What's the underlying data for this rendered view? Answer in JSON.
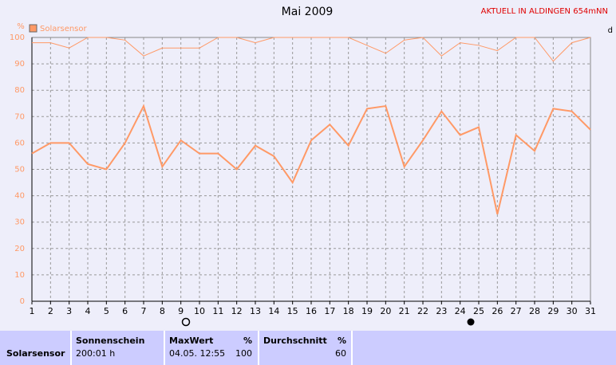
{
  "chart_data": {
    "type": "line",
    "title": "Mai 2009",
    "subtitle": "AKTUELL IN ALDINGEN 654mNN",
    "y_label": "%",
    "right_label": "d",
    "x": [
      1,
      2,
      3,
      4,
      5,
      6,
      7,
      8,
      9,
      10,
      11,
      12,
      13,
      14,
      15,
      16,
      17,
      18,
      19,
      20,
      21,
      22,
      23,
      24,
      25,
      26,
      27,
      28,
      29,
      30,
      31
    ],
    "series": [
      {
        "name": "Solarsensor",
        "color": "#ff9966",
        "values": [
          56,
          60,
          60,
          52,
          50,
          60,
          74,
          51,
          61,
          56,
          56,
          50,
          59,
          55,
          45,
          61,
          67,
          59,
          73,
          74,
          51,
          61,
          72,
          63,
          66,
          33,
          63,
          57,
          73,
          72,
          65
        ]
      },
      {
        "color": "#ff9966",
        "values": [
          98,
          98,
          96,
          100,
          100,
          99,
          93,
          96,
          96,
          96,
          100,
          100,
          98,
          100,
          100,
          100,
          100,
          100,
          97,
          94,
          99,
          100,
          93,
          98,
          97,
          95,
          100,
          100,
          91,
          98,
          100
        ]
      }
    ],
    "xlim": [
      1,
      31
    ],
    "xticks": [
      1,
      2,
      3,
      4,
      5,
      6,
      7,
      8,
      9,
      10,
      11,
      12,
      13,
      14,
      15,
      16,
      17,
      18,
      19,
      20,
      21,
      22,
      23,
      24,
      25,
      26,
      27,
      28,
      29,
      30,
      31
    ],
    "ylim": [
      0,
      100
    ],
    "yticks": [
      0,
      10,
      20,
      30,
      40,
      50,
      60,
      70,
      80,
      90,
      100
    ],
    "grid": true
  },
  "table": {
    "row_label": "Solarsensor",
    "columns": [
      {
        "header": "Sonnenschein",
        "value": "200:01 h"
      },
      {
        "header": "MaxWert",
        "unit": "%",
        "date": "04.05. 12:55",
        "value": "100"
      },
      {
        "header": "Durchschnitt",
        "unit": "%",
        "value": "60"
      }
    ]
  }
}
